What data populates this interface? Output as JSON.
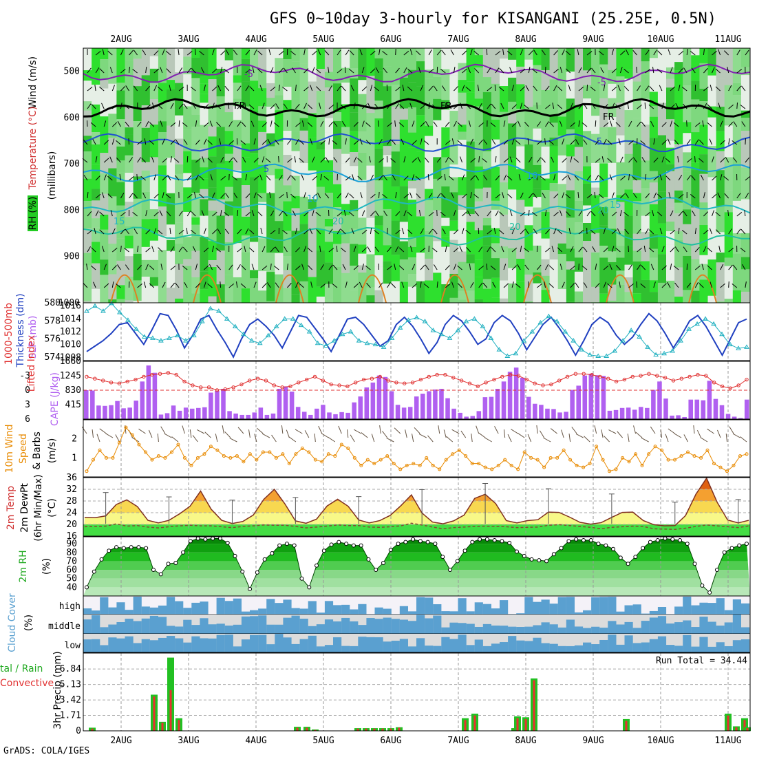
{
  "title": "GFS 0~10day 3-hourly for KISANGANI (25.25E, 0.5N)",
  "footer": "GrADS: COLA/IGES",
  "colors": {
    "rh": "#22cc22",
    "temp": "#ee6600",
    "wind": "#e88a00",
    "cape": "#b060f0",
    "slp": "#2040c0",
    "thick": "#20b0c0",
    "li": "#e03030",
    "cloud": "#5aa0d0",
    "rain": "#22c022",
    "conv": "#e83030"
  },
  "x_labels": [
    "2AUG",
    "3AUG",
    "4AUG",
    "5AUG",
    "6AUG",
    "7AUG",
    "8AUG",
    "9AUG",
    "10AUG",
    "11AUG"
  ],
  "panel_labels": {
    "upper": [
      {
        "t": "Wind (m/s)",
        "c": "#000"
      },
      {
        "t": "Temperature (°C)",
        "c": "#d03030"
      },
      {
        "t": "RH (%)",
        "c": "#000"
      },
      {
        "t": "(millibars)",
        "c": "#000"
      }
    ],
    "slp": [
      {
        "t": "1000-500mb",
        "c": "#e03030"
      },
      {
        "t": "Thickness (dm)",
        "c": "#2040c0"
      },
      {
        "t": "SLP (mb)",
        "c": "#b060f0"
      }
    ],
    "li": [
      {
        "t": "Lifted Index",
        "c": "#e03030"
      },
      {
        "t": "CAPE (J/kg)",
        "c": "#b060f0"
      }
    ],
    "wind": [
      {
        "t": "10m Wind",
        "c": "#e88a00"
      },
      {
        "t": "Speed",
        "c": "#e88a00"
      },
      {
        "t": "& Barbs",
        "c": "#000"
      },
      {
        "t": "(m/s)",
        "c": "#000"
      }
    ],
    "temp": [
      {
        "t": "2m Temp",
        "c": "#d03030"
      },
      {
        "t": "2m DewPt",
        "c": "#000"
      },
      {
        "t": "(6hr Min/Max)",
        "c": "#000"
      },
      {
        "t": "(°C)",
        "c": "#000"
      }
    ],
    "rh": [
      {
        "t": "2m RH",
        "c": "#22aa22"
      },
      {
        "t": "(%)",
        "c": "#000"
      }
    ],
    "cloud": [
      {
        "t": "Cloud Cover",
        "c": "#5aa0d0"
      },
      {
        "t": "(%)",
        "c": "#000"
      }
    ],
    "precip": [
      {
        "t": "tal / Rain",
        "c": "#22aa22"
      },
      {
        "t": "Convective",
        "c": "#e03030"
      },
      {
        "t": "3hr Precip (mm)",
        "c": "#000"
      }
    ]
  },
  "cloud_layers": [
    "high",
    "middle",
    "low"
  ],
  "run_total": "Run Total = 34.44",
  "contour_labels": [
    "-5",
    "-5",
    "FR",
    "FR",
    "FR",
    "-5",
    "5",
    "10",
    "10",
    "15",
    "15",
    "20",
    "20",
    "20"
  ],
  "chart_data": [
    {
      "type": "area",
      "name": "pressure-time cross section",
      "ylabel": "millibars",
      "ylim": [
        1000,
        450
      ],
      "yticks": [
        500,
        600,
        700,
        800,
        900,
        1000
      ],
      "x": [
        "2AUG",
        "3AUG",
        "4AUG",
        "5AUG",
        "6AUG",
        "7AUG",
        "8AUG",
        "9AUG",
        "10AUG",
        "11AUG"
      ],
      "isotherms": [
        {
          "t": -5,
          "p": 505
        },
        {
          "t": 0,
          "p": 580
        },
        {
          "t": 5,
          "p": 655
        },
        {
          "t": 10,
          "p": 720
        },
        {
          "t": 15,
          "p": 790
        },
        {
          "t": 20,
          "p": 855
        }
      ]
    },
    {
      "type": "line",
      "name": "thickness-slp",
      "y_left": {
        "ticks": [
          574,
          576,
          578,
          580
        ],
        "ylim": [
          573.6,
          580
        ]
      },
      "y_right": {
        "ticks": [
          1008,
          1010,
          1012,
          1014,
          1016
        ],
        "ylim": [
          1007.5,
          1016.5
        ]
      },
      "series": [
        {
          "name": "Thickness (dm)",
          "values": [
            574.6,
            575.2,
            575.8,
            576.6,
            577.6,
            577.8,
            576.6,
            575.4,
            577.0,
            578.8,
            578.6,
            577.0,
            575.0,
            576.4,
            578.2,
            578.6,
            577.0,
            575.6,
            574.0,
            576.0,
            577.6,
            578.2,
            577.4,
            576.4,
            575.0,
            576.8,
            578.6,
            578.4,
            577.2,
            576.0,
            574.6,
            576.4,
            578.2,
            578.4,
            577.6,
            576.4,
            575.2,
            575.8,
            577.6,
            578.4,
            577.4,
            576.0,
            574.4,
            575.6,
            577.6,
            578.6,
            578.0,
            576.8,
            575.4,
            576.0,
            577.8,
            578.6,
            578.0,
            576.6,
            574.8,
            576.2,
            577.6,
            578.4,
            577.2,
            575.8,
            574.2,
            575.8,
            577.6,
            578.4,
            577.8,
            576.4,
            575.4,
            576.2,
            577.6,
            578.8,
            578.0,
            576.6,
            575.0,
            576.4,
            578.0,
            578.6,
            577.4,
            575.8,
            574.2,
            576.0,
            577.8,
            578.2
          ]
        },
        {
          "name": "SLP (mb)",
          "values": [
            1015.2,
            1016.0,
            1015.2,
            1016.4,
            1015.0,
            1013.8,
            1012.4,
            1011.2,
            1011.0,
            1010.6,
            1011.0,
            1011.4,
            1010.6,
            1011.4,
            1013.6,
            1015.6,
            1015.2,
            1014.0,
            1012.8,
            1011.6,
            1010.6,
            1010.2,
            1011.4,
            1012.8,
            1014.0,
            1014.0,
            1013.0,
            1012.0,
            1010.2,
            1009.8,
            1010.6,
            1011.6,
            1012.0,
            1010.6,
            1010.2,
            1010.0,
            1009.6,
            1011.0,
            1012.6,
            1013.8,
            1014.2,
            1013.6,
            1012.2,
            1011.6,
            1011.0,
            1012.2,
            1013.6,
            1014.0,
            1012.8,
            1011.0,
            1009.2,
            1008.2,
            1008.6,
            1010.6,
            1012.0,
            1013.4,
            1014.4,
            1013.6,
            1012.0,
            1010.6,
            1009.2,
            1008.4,
            1008.2,
            1008.2,
            1009.0,
            1010.6,
            1012.2,
            1011.2,
            1009.6,
            1008.4,
            1008.6,
            1009.0,
            1010.6,
            1012.4,
            1013.2,
            1014.0,
            1013.2,
            1011.6,
            1010.0,
            1009.4,
            1009.6
          ]
        }
      ]
    },
    {
      "type": "bar",
      "name": "cape-li",
      "y_left": {
        "label": "Lifted Index",
        "ticks": [
          -3,
          0,
          3,
          6
        ],
        "ylim": [
          6,
          -6
        ]
      },
      "y_right": {
        "label": "CAPE (J/kg)",
        "ticks": [
          415,
          830,
          1245,
          1660
        ],
        "ylim": [
          0,
          1660
        ]
      },
      "series": [
        {
          "name": "CAPE (J/kg)",
          "values": [
            830,
            820,
            390,
            380,
            400,
            520,
            310,
            330,
            530,
            1080,
            1540,
            1330,
            130,
            170,
            390,
            240,
            330,
            300,
            320,
            340,
            760,
            810,
            870,
            230,
            160,
            120,
            120,
            190,
            330,
            120,
            160,
            870,
            940,
            790,
            350,
            210,
            120,
            300,
            410,
            190,
            140,
            200,
            180,
            480,
            650,
            910,
            1050,
            1250,
            1210,
            800,
            410,
            330,
            350,
            650,
            730,
            800,
            850,
            870,
            600,
            300,
            180,
            70,
            90,
            230,
            630,
            640,
            870,
            1080,
            1360,
            1480,
            1190,
            640,
            440,
            410,
            300,
            290,
            190,
            210,
            840,
            960,
            1250,
            1300,
            1260,
            1240,
            240,
            260,
            320,
            330,
            270,
            350,
            320,
            840,
            1080,
            590,
            100,
            110,
            60,
            560,
            560,
            540,
            1100,
            580,
            400,
            150,
            70,
            30,
            560
          ]
        },
        {
          "name": "Lifted Index",
          "values": [
            -2.8,
            -2.4,
            -2.0,
            -1.6,
            -1.4,
            -1.8,
            -2.2,
            -2.8,
            -3.2,
            -3.4,
            -3.6,
            -3.2,
            -1.8,
            -1.0,
            -0.6,
            -0.6,
            0.0,
            -0.2,
            -0.6,
            -1.2,
            -2.0,
            -2.4,
            -2.0,
            -1.0,
            -0.6,
            -0.8,
            -1.6,
            -2.2,
            -2.8,
            -2.0,
            -1.2,
            -1.0,
            -0.8,
            -1.6,
            -2.2,
            -2.4,
            -2.8,
            -2.0,
            -1.6,
            -1.4,
            -1.6,
            -2.2,
            -2.8,
            -3.2,
            -3.2,
            -2.6,
            -2.0,
            -1.4,
            -0.8,
            -1.6,
            -2.2,
            -2.8,
            -3.2,
            -3.0,
            -2.2,
            -1.4,
            -1.0,
            -1.2,
            -2.0,
            -2.8,
            -3.4,
            -3.4,
            -3.2,
            -2.8,
            -2.4,
            -1.8,
            -2.2,
            -2.8,
            -3.0,
            -3.4,
            -3.0,
            -2.6,
            -2.0,
            -2.4,
            -2.8,
            -3.2,
            -3.0,
            -1.6,
            -0.8,
            -0.4,
            -1.0,
            -2.2
          ]
        }
      ]
    },
    {
      "type": "line",
      "name": "10m-wind",
      "ylabel": "Speed (m/s)",
      "yticks": [
        1,
        2
      ],
      "ylim": [
        0,
        3
      ],
      "series": [
        {
          "name": "Speed (m/s)",
          "values": [
            0.3,
            0.9,
            1.4,
            1.0,
            1.0,
            1.8,
            2.6,
            2.2,
            1.7,
            1.3,
            0.9,
            1.1,
            1.0,
            1.3,
            1.7,
            1.0,
            0.6,
            1.0,
            1.2,
            1.6,
            1.4,
            1.1,
            1.0,
            1.1,
            0.8,
            1.2,
            0.9,
            1.3,
            1.3,
            1.0,
            1.2,
            0.7,
            1.2,
            1.5,
            1.3,
            0.9,
            0.8,
            1.2,
            1.1,
            1.7,
            1.5,
            1.0,
            0.6,
            0.9,
            0.7,
            0.9,
            1.1,
            0.7,
            0.4,
            0.6,
            0.7,
            0.6,
            1.0,
            0.6,
            0.4,
            0.9,
            1.2,
            1.4,
            1.1,
            0.7,
            0.7,
            0.5,
            0.4,
            0.6,
            0.9,
            0.6,
            0.4,
            1.3,
            1.0,
            0.9,
            0.5,
            1.0,
            1.0,
            1.4,
            0.9,
            0.6,
            0.5,
            0.7,
            1.6,
            0.9,
            0.3,
            0.4,
            1.0,
            0.8,
            1.2,
            0.6,
            1.2,
            1.6,
            1.4,
            0.9,
            0.9,
            1.1,
            1.3,
            1.1,
            1.0,
            1.4,
            0.7,
            0.5,
            0.3,
            0.6,
            1.1,
            1.2
          ]
        }
      ]
    },
    {
      "type": "area",
      "name": "2m-temp",
      "ylabel": "°C",
      "yticks": [
        16,
        20,
        24,
        28,
        32,
        36
      ],
      "ylim": [
        16,
        36
      ],
      "series": [
        {
          "name": "2m Temp",
          "values": [
            22.4,
            22.3,
            22.9,
            26.8,
            28.4,
            26.1,
            21.4,
            20.5,
            21.4,
            23.6,
            26.2,
            31.4,
            25.2,
            21.4,
            20.3,
            21.0,
            23.2,
            28.6,
            32.0,
            27.0,
            21.2,
            20.4,
            21.8,
            26.3,
            28.6,
            26.2,
            21.5,
            20.5,
            21.3,
            23.1,
            26.4,
            30.1,
            23.9,
            20.8,
            20.2,
            21.2,
            23.2,
            28.9,
            30.3,
            27.1,
            21.3,
            20.5,
            21.3,
            21.6,
            24.2,
            24.1,
            22.5,
            20.7,
            20.1,
            20.6,
            22.4,
            24.1,
            24.2,
            21.3,
            19.9,
            19.5,
            19.6,
            23.0,
            30.4,
            35.8,
            27.6,
            21.5,
            20.5,
            21.4
          ]
        },
        {
          "name": "2m DewPt",
          "values": [
            19.2,
            19.3,
            19.4,
            20.2,
            19.4,
            19.6,
            19.1,
            18.8,
            19.2,
            19.5,
            19.7,
            19.5,
            19.5,
            19.2,
            18.9,
            19.3,
            19.5,
            19.8,
            19.7,
            19.7,
            19.3,
            18.8,
            19.1,
            19.4,
            19.8,
            19.6,
            19.6,
            19.1,
            19.0,
            19.2,
            19.5,
            20.4,
            19.8,
            19.1,
            18.5,
            18.9,
            19.1,
            19.3,
            19.4,
            19.3,
            19.2,
            18.9,
            19.0,
            19.1,
            19.7,
            19.9,
            19.6,
            19.3,
            19.0,
            18.5,
            19.0,
            19.2,
            19.4,
            19.3,
            18.5,
            18.4,
            18.3,
            18.7,
            19.3,
            19.8,
            19.5,
            19.2,
            18.9,
            19.5
          ]
        }
      ]
    },
    {
      "type": "area",
      "name": "2m-rh",
      "ylabel": "%",
      "yticks": [
        40,
        50,
        60,
        70,
        80,
        90
      ],
      "ylim": [
        30,
        98
      ],
      "series": [
        {
          "name": "2m RH",
          "values": [
            40,
            58,
            72,
            82,
            86,
            85,
            86,
            86,
            85,
            60,
            55,
            67,
            68,
            80,
            93,
            96,
            95,
            96,
            96,
            91,
            76,
            58,
            38,
            57,
            72,
            79,
            88,
            90,
            88,
            50,
            40,
            65,
            82,
            89,
            92,
            90,
            88,
            88,
            72,
            60,
            68,
            83,
            90,
            92,
            95,
            93,
            92,
            90,
            75,
            60,
            70,
            82,
            92,
            95,
            95,
            94,
            93,
            91,
            81,
            76,
            72,
            71,
            70,
            78,
            85,
            93,
            95,
            94,
            94,
            90,
            88,
            84,
            74,
            67,
            75,
            85,
            92,
            94,
            96,
            95,
            94,
            90,
            67,
            42,
            34,
            60,
            80,
            85,
            88,
            90
          ]
        }
      ]
    },
    {
      "type": "heatmap",
      "name": "cloud-cover",
      "rows": [
        "high",
        "middle",
        "low"
      ],
      "ylim": [
        0,
        100
      ]
    },
    {
      "type": "bar",
      "name": "3hr-precip",
      "ylabel": "3hr Precip (mm)",
      "yticks": [
        0,
        1.71,
        3.42,
        5.13,
        6.84
      ],
      "ylim": [
        0,
        8.6
      ],
      "series": [
        {
          "name": "Total / Rain",
          "values": [
            0.35,
            0,
            0,
            0,
            4.0,
            1.0,
            8.1,
            1.4,
            0,
            0.45,
            0.45,
            0.15,
            0.3,
            0.3,
            0.3,
            0.3,
            0.3,
            0.4,
            1.4,
            1.9,
            0.3,
            1.6,
            1.5,
            5.8,
            1.3,
            1.9,
            0.5,
            1.4,
            0.4
          ]
        },
        {
          "name": "Convective",
          "values": [
            0.25,
            0,
            0,
            0,
            3.8,
            0.9,
            4.5,
            1.2,
            0,
            0.35,
            0.35,
            0.1,
            0.25,
            0.25,
            0.25,
            0.25,
            0.25,
            0.35,
            1.2,
            1.7,
            0.25,
            1.4,
            1.3,
            5.6,
            1.1,
            1.7,
            0.4,
            1.2,
            0.3
          ]
        }
      ]
    }
  ]
}
